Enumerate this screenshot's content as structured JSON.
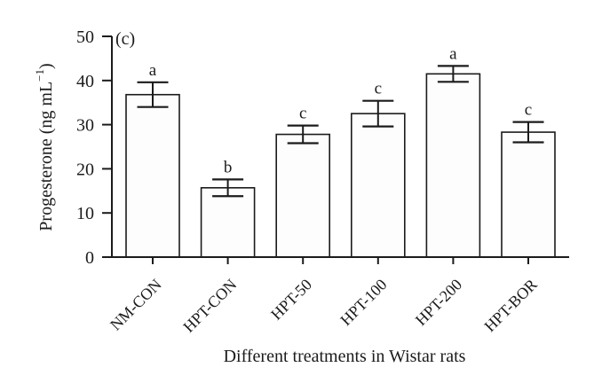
{
  "chart_data": {
    "type": "bar",
    "panel_label": "(c)",
    "title": "",
    "xlabel": "Different treatments in Wistar rats",
    "ylabel": "Progesterone (ng mL⁻¹)",
    "ylabel_parts": {
      "prefix": "Progesterone (ng mL",
      "superscript": "−1",
      "suffix": ")"
    },
    "categories": [
      "NM-CON",
      "HPT-CON",
      "HPT-50",
      "HPT-100",
      "HPT-200",
      "HPT-BOR"
    ],
    "values": [
      36.8,
      15.7,
      27.8,
      32.5,
      41.5,
      28.3
    ],
    "error_bars": [
      2.8,
      1.9,
      2.0,
      2.9,
      1.8,
      2.3
    ],
    "significance_letters": [
      "a",
      "b",
      "c",
      "c",
      "a",
      "c"
    ],
    "ylim": [
      0,
      50
    ],
    "yticks": [
      0,
      10,
      20,
      30,
      40,
      50
    ],
    "grid": false,
    "legend_position": "none",
    "colors": {
      "line": "#1b1b1b",
      "bar_fill": "#fdfdfd",
      "background": "#ffffff"
    }
  }
}
